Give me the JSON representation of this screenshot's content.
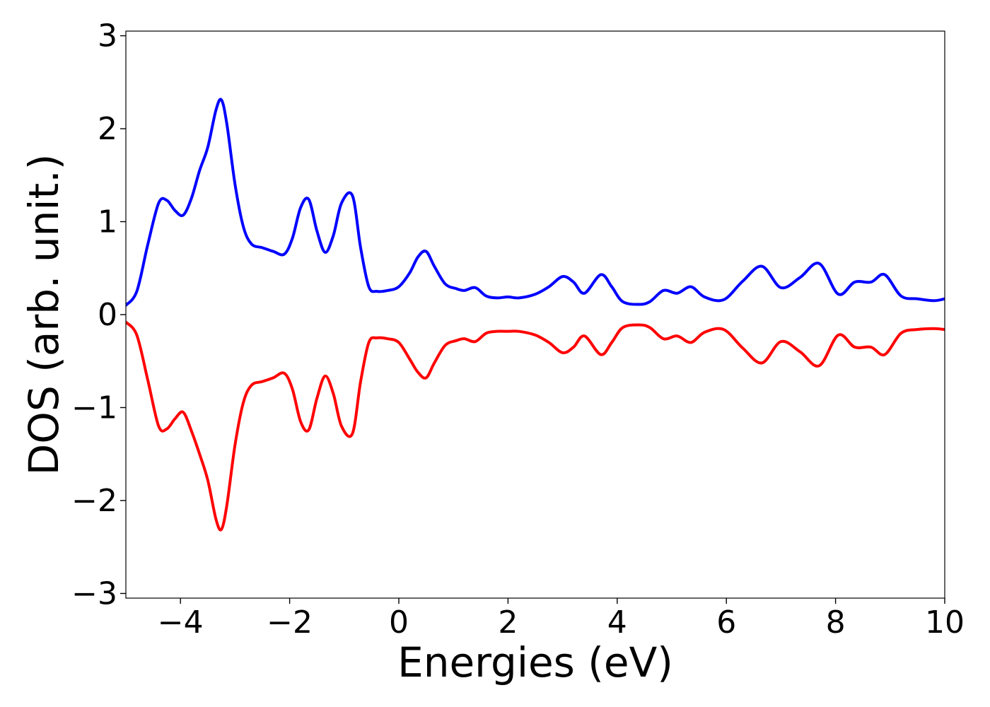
{
  "chart_data": {
    "type": "line",
    "title": "",
    "xlabel": "Energies (eV)",
    "ylabel": "DOS (arb. unit.)",
    "xlim": [
      -5,
      10
    ],
    "ylim": [
      -3.05,
      3.05
    ],
    "xticks": [
      -4,
      -2,
      0,
      2,
      4,
      6,
      8,
      10
    ],
    "yticks": [
      -3,
      -2,
      -1,
      0,
      1,
      2,
      3
    ],
    "xtick_labels": [
      "−4",
      "−2",
      "0",
      "2",
      "4",
      "6",
      "8",
      "10"
    ],
    "ytick_labels": [
      "−3",
      "−2",
      "−1",
      "0",
      "1",
      "2",
      "3"
    ],
    "grid": false,
    "legend": "none",
    "series": [
      {
        "color": "#0000ff",
        "x": [
          -5.0,
          -4.8,
          -4.6,
          -4.4,
          -4.25,
          -4.1,
          -3.95,
          -3.8,
          -3.65,
          -3.5,
          -3.35,
          -3.25,
          -3.15,
          -3.0,
          -2.85,
          -2.7,
          -2.5,
          -2.3,
          -2.1,
          -1.95,
          -1.8,
          -1.65,
          -1.5,
          -1.35,
          -1.2,
          -1.05,
          -0.85,
          -0.7,
          -0.55,
          -0.4,
          -0.2,
          0.0,
          0.2,
          0.35,
          0.5,
          0.65,
          0.85,
          1.05,
          1.2,
          1.4,
          1.6,
          1.8,
          2.0,
          2.2,
          2.5,
          2.75,
          3.0,
          3.2,
          3.4,
          3.7,
          3.9,
          4.1,
          4.4,
          4.6,
          4.85,
          5.1,
          5.35,
          5.6,
          5.95,
          6.3,
          6.65,
          7.0,
          7.35,
          7.7,
          8.05,
          8.35,
          8.65,
          8.9,
          9.2,
          9.5,
          9.8,
          10.0
        ],
        "y": [
          0.1,
          0.25,
          0.75,
          1.2,
          1.23,
          1.12,
          1.07,
          1.25,
          1.55,
          1.8,
          2.2,
          2.31,
          2.05,
          1.4,
          0.95,
          0.76,
          0.72,
          0.68,
          0.65,
          0.82,
          1.15,
          1.24,
          0.9,
          0.67,
          0.85,
          1.2,
          1.28,
          0.72,
          0.3,
          0.25,
          0.26,
          0.3,
          0.45,
          0.62,
          0.68,
          0.52,
          0.33,
          0.28,
          0.26,
          0.29,
          0.2,
          0.18,
          0.19,
          0.18,
          0.22,
          0.3,
          0.41,
          0.35,
          0.23,
          0.43,
          0.3,
          0.14,
          0.11,
          0.14,
          0.26,
          0.23,
          0.3,
          0.19,
          0.16,
          0.36,
          0.52,
          0.29,
          0.4,
          0.55,
          0.22,
          0.35,
          0.35,
          0.43,
          0.2,
          0.17,
          0.15,
          0.17
        ]
      },
      {
        "color": "#ff0000",
        "x": [
          -5.0,
          -4.8,
          -4.6,
          -4.4,
          -4.25,
          -4.1,
          -3.95,
          -3.8,
          -3.65,
          -3.5,
          -3.35,
          -3.25,
          -3.15,
          -3.0,
          -2.85,
          -2.7,
          -2.5,
          -2.3,
          -2.1,
          -1.95,
          -1.8,
          -1.65,
          -1.5,
          -1.35,
          -1.2,
          -1.05,
          -0.85,
          -0.7,
          -0.55,
          -0.4,
          -0.2,
          0.0,
          0.2,
          0.35,
          0.5,
          0.65,
          0.85,
          1.05,
          1.2,
          1.4,
          1.6,
          1.8,
          2.0,
          2.2,
          2.5,
          2.75,
          3.0,
          3.2,
          3.4,
          3.7,
          3.9,
          4.1,
          4.4,
          4.6,
          4.85,
          5.1,
          5.35,
          5.6,
          5.95,
          6.3,
          6.65,
          7.0,
          7.35,
          7.7,
          8.05,
          8.35,
          8.65,
          8.9,
          9.2,
          9.5,
          9.8,
          10.0
        ],
        "y": [
          -0.08,
          -0.22,
          -0.7,
          -1.2,
          -1.23,
          -1.12,
          -1.05,
          -1.25,
          -1.5,
          -1.78,
          -2.2,
          -2.31,
          -2.05,
          -1.4,
          -0.95,
          -0.76,
          -0.72,
          -0.68,
          -0.63,
          -0.8,
          -1.15,
          -1.24,
          -0.9,
          -0.66,
          -0.85,
          -1.2,
          -1.28,
          -0.72,
          -0.3,
          -0.25,
          -0.26,
          -0.3,
          -0.48,
          -0.62,
          -0.68,
          -0.52,
          -0.33,
          -0.28,
          -0.26,
          -0.29,
          -0.2,
          -0.18,
          -0.18,
          -0.18,
          -0.22,
          -0.3,
          -0.41,
          -0.35,
          -0.23,
          -0.43,
          -0.3,
          -0.14,
          -0.11,
          -0.14,
          -0.26,
          -0.23,
          -0.3,
          -0.19,
          -0.16,
          -0.36,
          -0.52,
          -0.29,
          -0.4,
          -0.55,
          -0.22,
          -0.35,
          -0.35,
          -0.43,
          -0.2,
          -0.16,
          -0.15,
          -0.16
        ]
      }
    ]
  }
}
